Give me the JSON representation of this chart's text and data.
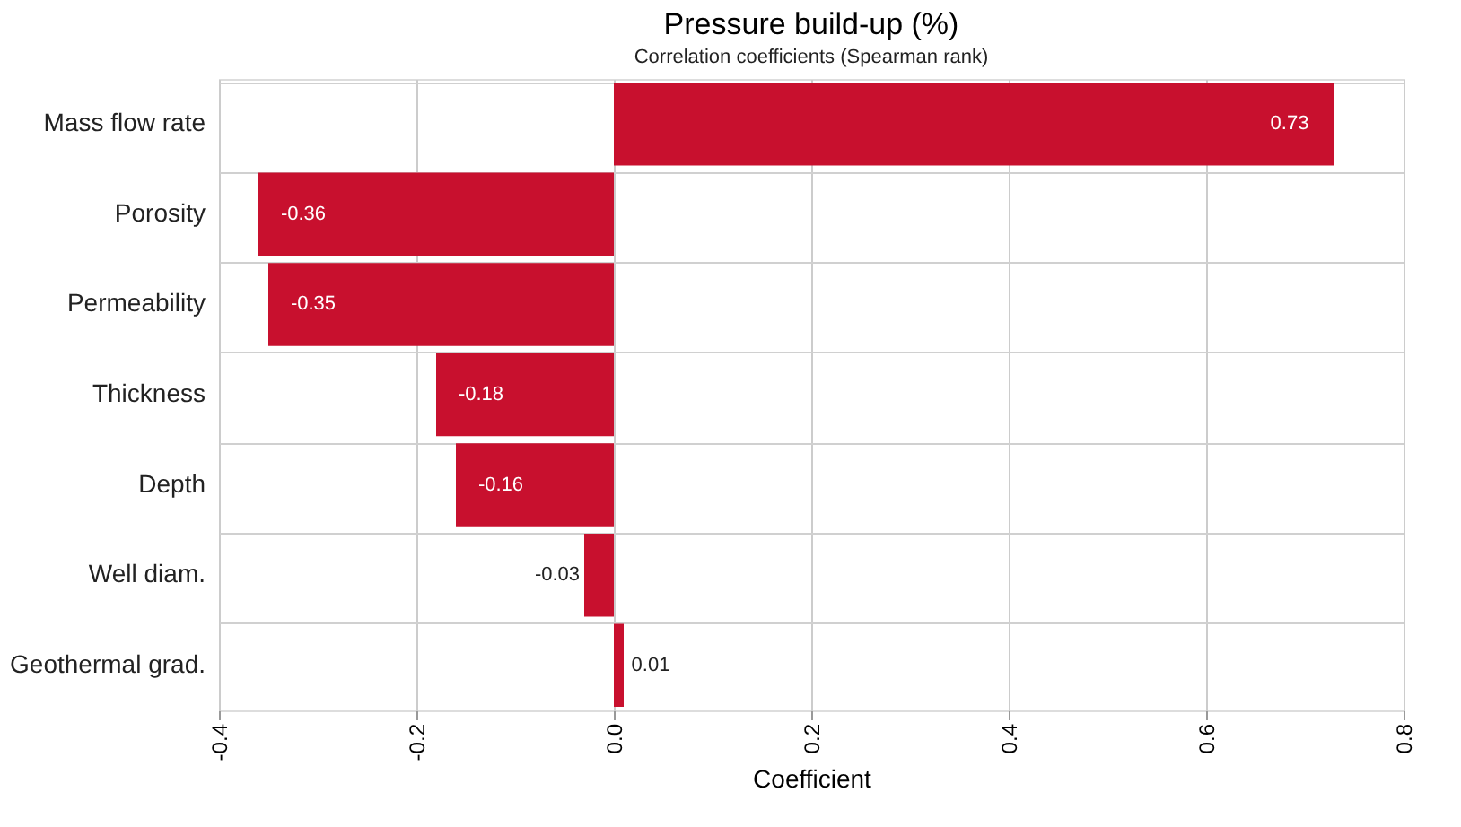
{
  "chart_data": {
    "type": "bar",
    "orientation": "horizontal",
    "title": "Pressure build-up (%)",
    "subtitle": "Correlation coefficients (Spearman rank)",
    "xlabel": "Coefficient",
    "categories": [
      "Mass flow rate",
      "Porosity",
      "Permeability",
      "Thickness",
      "Depth",
      "Well diam.",
      "Geothermal grad."
    ],
    "values": [
      0.73,
      -0.36,
      -0.35,
      -0.18,
      -0.16,
      -0.03,
      0.01
    ],
    "color": "#c8102e",
    "data_labels": true,
    "grid": "x",
    "xlim": [
      -0.4,
      0.8
    ],
    "xticks": [
      -0.4,
      -0.2,
      {
        "value": 0,
        "label": "0.0"
      },
      0.2,
      0.4,
      0.6,
      0.8
    ]
  }
}
